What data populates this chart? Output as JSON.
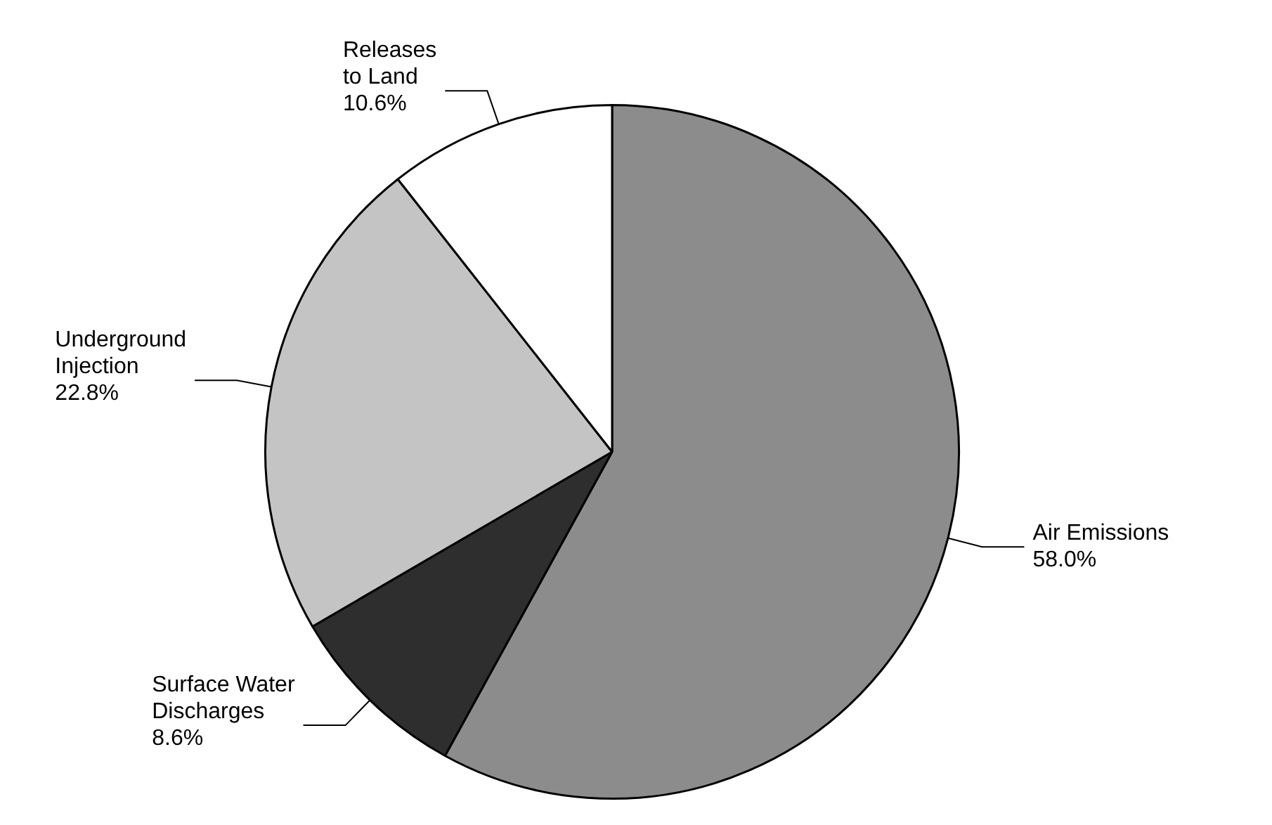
{
  "chart_data": {
    "type": "pie",
    "categories": [
      "Air Emissions",
      "Surface Water Discharges",
      "Underground Injection",
      "Releases to Land"
    ],
    "values": [
      58.0,
      8.6,
      22.8,
      10.6
    ],
    "colors": [
      "#8c8c8c",
      "#2e2e2e",
      "#c4c4c4",
      "#ffffff"
    ],
    "value_labels": [
      "58.0%",
      "8.6%",
      "22.8%",
      "10.6%"
    ],
    "legend": false
  }
}
